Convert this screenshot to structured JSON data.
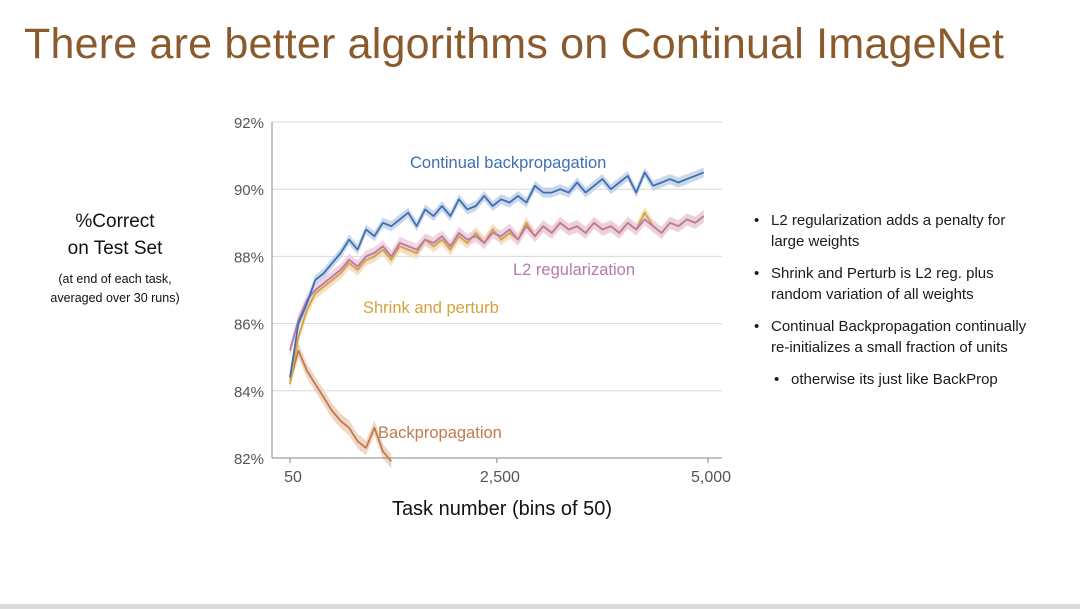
{
  "slide": {
    "title": "There are better algorithms on Continual ImageNet"
  },
  "y_axis_block": {
    "label_line1": "%Correct",
    "label_line2": "on Test Set",
    "note_line1": "(at end of each task,",
    "note_line2": "averaged over 30 runs)"
  },
  "bullets": [
    {
      "line1": "L2 regularization adds a penalty for",
      "line2": "large weights"
    },
    {
      "line1": "Shrink and Perturb is L2 reg. plus",
      "line2": "random variation of all weights"
    },
    {
      "line1": "Continual Backpropagation continually",
      "line2": "re-initializes a small fraction of units"
    }
  ],
  "sub_bullet": "otherwise its just like BackProp",
  "chart_data": {
    "type": "line",
    "xlabel": "Task number (bins of 50)",
    "ylabel": "%Correct on Test Set",
    "xlim": [
      50,
      5000
    ],
    "ylim": [
      82,
      92
    ],
    "x_ticks": [
      {
        "value": 50,
        "label": "50"
      },
      {
        "value": 2500,
        "label": "2,500"
      },
      {
        "value": 5000,
        "label": "5,000"
      }
    ],
    "y_ticks": [
      {
        "value": 82,
        "label": "82%"
      },
      {
        "value": 84,
        "label": "84%"
      },
      {
        "value": 86,
        "label": "86%"
      },
      {
        "value": 88,
        "label": "88%"
      },
      {
        "value": 90,
        "label": "90%"
      },
      {
        "value": 92,
        "label": "92%"
      }
    ],
    "grid": "horizontal",
    "series": [
      {
        "name": "Continual backpropagation",
        "color": "#3f6fb0",
        "band_color": "#b8cbe6",
        "x": [
          50,
          150,
          250,
          350,
          450,
          550,
          650,
          750,
          850,
          950,
          1050,
          1150,
          1250,
          1350,
          1450,
          1550,
          1650,
          1750,
          1850,
          1950,
          2050,
          2150,
          2250,
          2350,
          2450,
          2550,
          2650,
          2750,
          2850,
          2950,
          3050,
          3150,
          3250,
          3350,
          3450,
          3550,
          3650,
          3750,
          3850,
          3950,
          4050,
          4150,
          4250,
          4350,
          4450,
          4550,
          4650,
          4750,
          4850,
          4950
        ],
        "y": [
          84.4,
          86.0,
          86.6,
          87.3,
          87.5,
          87.8,
          88.1,
          88.5,
          88.2,
          88.8,
          88.6,
          89.0,
          88.9,
          89.1,
          89.3,
          88.9,
          89.4,
          89.2,
          89.5,
          89.2,
          89.7,
          89.4,
          89.5,
          89.8,
          89.5,
          89.7,
          89.6,
          89.8,
          89.6,
          90.1,
          89.9,
          89.9,
          90.0,
          89.9,
          90.2,
          89.9,
          90.1,
          90.3,
          90.0,
          90.2,
          90.4,
          89.9,
          90.5,
          90.1,
          90.2,
          90.3,
          90.2,
          90.3,
          90.4,
          90.5
        ],
        "band": 0.15
      },
      {
        "name": "L2 regularization",
        "color": "#b87aa8",
        "band_color": "#ecc9de",
        "x": [
          50,
          150,
          250,
          350,
          450,
          550,
          650,
          750,
          850,
          950,
          1050,
          1150,
          1250,
          1350,
          1450,
          1550,
          1650,
          1750,
          1850,
          1950,
          2050,
          2150,
          2250,
          2350,
          2450,
          2550,
          2650,
          2750,
          2850,
          2950,
          3050,
          3150,
          3250,
          3350,
          3450,
          3550,
          3650,
          3750,
          3850,
          3950,
          4050,
          4150,
          4250,
          4350,
          4450,
          4550,
          4650,
          4750,
          4850,
          4950
        ],
        "y": [
          85.2,
          86.1,
          86.7,
          87.0,
          87.2,
          87.4,
          87.6,
          87.9,
          87.7,
          88.0,
          88.1,
          88.3,
          88.0,
          88.4,
          88.3,
          88.2,
          88.5,
          88.4,
          88.6,
          88.3,
          88.7,
          88.5,
          88.6,
          88.4,
          88.7,
          88.6,
          88.8,
          88.5,
          88.9,
          88.6,
          88.9,
          88.7,
          89.0,
          88.8,
          88.9,
          88.7,
          89.0,
          88.8,
          88.9,
          88.7,
          89.0,
          88.8,
          89.1,
          88.9,
          88.7,
          89.0,
          88.9,
          89.1,
          89.0,
          89.2
        ],
        "band": 0.18
      },
      {
        "name": "Shrink and perturb",
        "color": "#d4a33c",
        "band_color": "#f0dcae",
        "x": [
          50,
          150,
          250,
          350,
          450,
          550,
          650,
          750,
          850,
          950,
          1050,
          1150,
          1250,
          1350,
          1450,
          1550,
          1650,
          1750,
          1850,
          1950,
          2050,
          2150,
          2250,
          2350,
          2450,
          2550,
          2650,
          2750,
          2850,
          2950,
          3050,
          3150,
          3250,
          3350,
          3450,
          3550,
          3650,
          3750,
          3850,
          3950,
          4050,
          4150,
          4250,
          4350,
          4450,
          4550,
          4650,
          4750,
          4850,
          4950
        ],
        "y": [
          84.2,
          85.6,
          86.4,
          86.9,
          87.1,
          87.3,
          87.5,
          87.8,
          87.6,
          87.9,
          88.0,
          88.2,
          87.9,
          88.3,
          88.2,
          88.1,
          88.5,
          88.3,
          88.5,
          88.2,
          88.6,
          88.4,
          88.7,
          88.4,
          88.8,
          88.5,
          88.7,
          88.5,
          89.0,
          88.6,
          88.9,
          88.7,
          89.0,
          88.8,
          88.9,
          88.7,
          89.0,
          88.8,
          88.9,
          88.7,
          89.0,
          88.8,
          89.3,
          88.9,
          88.7,
          89.0,
          88.9,
          89.1,
          89.0,
          89.2
        ],
        "band": 0.18
      },
      {
        "name": "Backpropagation",
        "color": "#c07a50",
        "band_color": "#ecc8b4",
        "x": [
          50,
          150,
          250,
          350,
          450,
          550,
          650,
          750,
          850,
          950,
          1050,
          1150,
          1250
        ],
        "y": [
          84.3,
          85.2,
          84.6,
          84.2,
          83.8,
          83.4,
          83.1,
          82.9,
          82.5,
          82.3,
          82.9,
          82.2,
          81.9
        ],
        "band": 0.22
      }
    ]
  }
}
